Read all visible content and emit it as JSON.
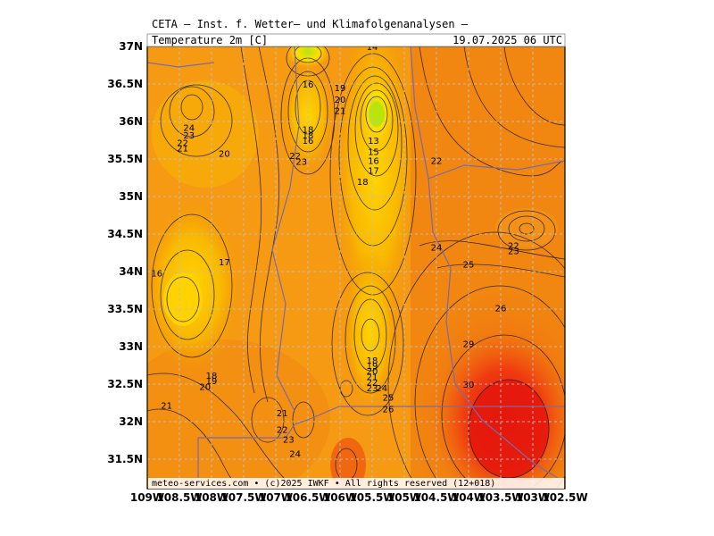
{
  "header": {
    "title": "CETA — Inst. f. Wetter— und Klimafolgenanalysen —",
    "parameter": "Temperature 2m [C]",
    "valid_time": "19.07.2025 06 UTC"
  },
  "footer": {
    "credit": "meteo-services.com • (c)2025 IWKF • All rights reserved (12+018)"
  },
  "axes": {
    "lat_labels": [
      "37N",
      "36.5N",
      "36N",
      "35.5N",
      "35N",
      "34.5N",
      "34N",
      "33.5N",
      "33N",
      "32.5N",
      "32N",
      "31.5N"
    ],
    "lon_labels": [
      "109W",
      "108.5W",
      "108W",
      "107.5W",
      "107W",
      "106.5W",
      "106W",
      "105.5W",
      "105W",
      "104.5W",
      "104W",
      "103.5W",
      "103W",
      "102.5W"
    ]
  },
  "contour_labels": [
    {
      "t": "14",
      "lon": -105.5,
      "lat": 37.0
    },
    {
      "t": "16",
      "lon": -106.5,
      "lat": 36.5
    },
    {
      "t": "19",
      "lon": -106.0,
      "lat": 36.45
    },
    {
      "t": "20",
      "lon": -106.0,
      "lat": 36.3
    },
    {
      "t": "21",
      "lon": -106.0,
      "lat": 36.15
    },
    {
      "t": "13",
      "lon": -105.48,
      "lat": 35.75
    },
    {
      "t": "15",
      "lon": -105.48,
      "lat": 35.6
    },
    {
      "t": "16",
      "lon": -105.48,
      "lat": 35.48
    },
    {
      "t": "17",
      "lon": -105.48,
      "lat": 35.35
    },
    {
      "t": "18",
      "lon": -105.65,
      "lat": 35.2
    },
    {
      "t": "18",
      "lon": -106.5,
      "lat": 35.9
    },
    {
      "t": "18",
      "lon": -106.5,
      "lat": 35.82
    },
    {
      "t": "16",
      "lon": -106.5,
      "lat": 35.75
    },
    {
      "t": "22",
      "lon": -106.7,
      "lat": 35.55
    },
    {
      "t": "23",
      "lon": -106.6,
      "lat": 35.47
    },
    {
      "t": "24",
      "lon": -108.35,
      "lat": 35.92
    },
    {
      "t": "23",
      "lon": -108.35,
      "lat": 35.82
    },
    {
      "t": "22",
      "lon": -108.45,
      "lat": 35.72
    },
    {
      "t": "21",
      "lon": -108.45,
      "lat": 35.65
    },
    {
      "t": "20",
      "lon": -107.8,
      "lat": 35.58
    },
    {
      "t": "22",
      "lon": -104.5,
      "lat": 35.48
    },
    {
      "t": "16",
      "lon": -108.85,
      "lat": 33.98
    },
    {
      "t": "17",
      "lon": -107.8,
      "lat": 34.13
    },
    {
      "t": "24",
      "lon": -104.5,
      "lat": 34.33
    },
    {
      "t": "25",
      "lon": -104.0,
      "lat": 34.1
    },
    {
      "t": "22",
      "lon": -103.3,
      "lat": 34.35
    },
    {
      "t": "23",
      "lon": -103.3,
      "lat": 34.28
    },
    {
      "t": "26",
      "lon": -103.5,
      "lat": 33.52
    },
    {
      "t": "29",
      "lon": -104.0,
      "lat": 33.04
    },
    {
      "t": "30",
      "lon": -104.0,
      "lat": 32.5
    },
    {
      "t": "18",
      "lon": -108.0,
      "lat": 32.62
    },
    {
      "t": "19",
      "lon": -108.0,
      "lat": 32.55
    },
    {
      "t": "20",
      "lon": -108.1,
      "lat": 32.47
    },
    {
      "t": "18",
      "lon": -105.5,
      "lat": 32.82
    },
    {
      "t": "19",
      "lon": -105.5,
      "lat": 32.75
    },
    {
      "t": "20",
      "lon": -105.5,
      "lat": 32.68
    },
    {
      "t": "21",
      "lon": -105.5,
      "lat": 32.6
    },
    {
      "t": "22",
      "lon": -105.5,
      "lat": 32.53
    },
    {
      "t": "23",
      "lon": -105.5,
      "lat": 32.45
    },
    {
      "t": "24",
      "lon": -105.35,
      "lat": 32.45
    },
    {
      "t": "25",
      "lon": -105.25,
      "lat": 32.33
    },
    {
      "t": "26",
      "lon": -105.25,
      "lat": 32.17
    },
    {
      "t": "21",
      "lon": -108.7,
      "lat": 32.22
    },
    {
      "t": "21",
      "lon": -106.9,
      "lat": 32.12
    },
    {
      "t": "22",
      "lon": -106.9,
      "lat": 31.9
    },
    {
      "t": "23",
      "lon": -106.8,
      "lat": 31.77
    },
    {
      "t": "24",
      "lon": -106.7,
      "lat": 31.58
    }
  ]
}
